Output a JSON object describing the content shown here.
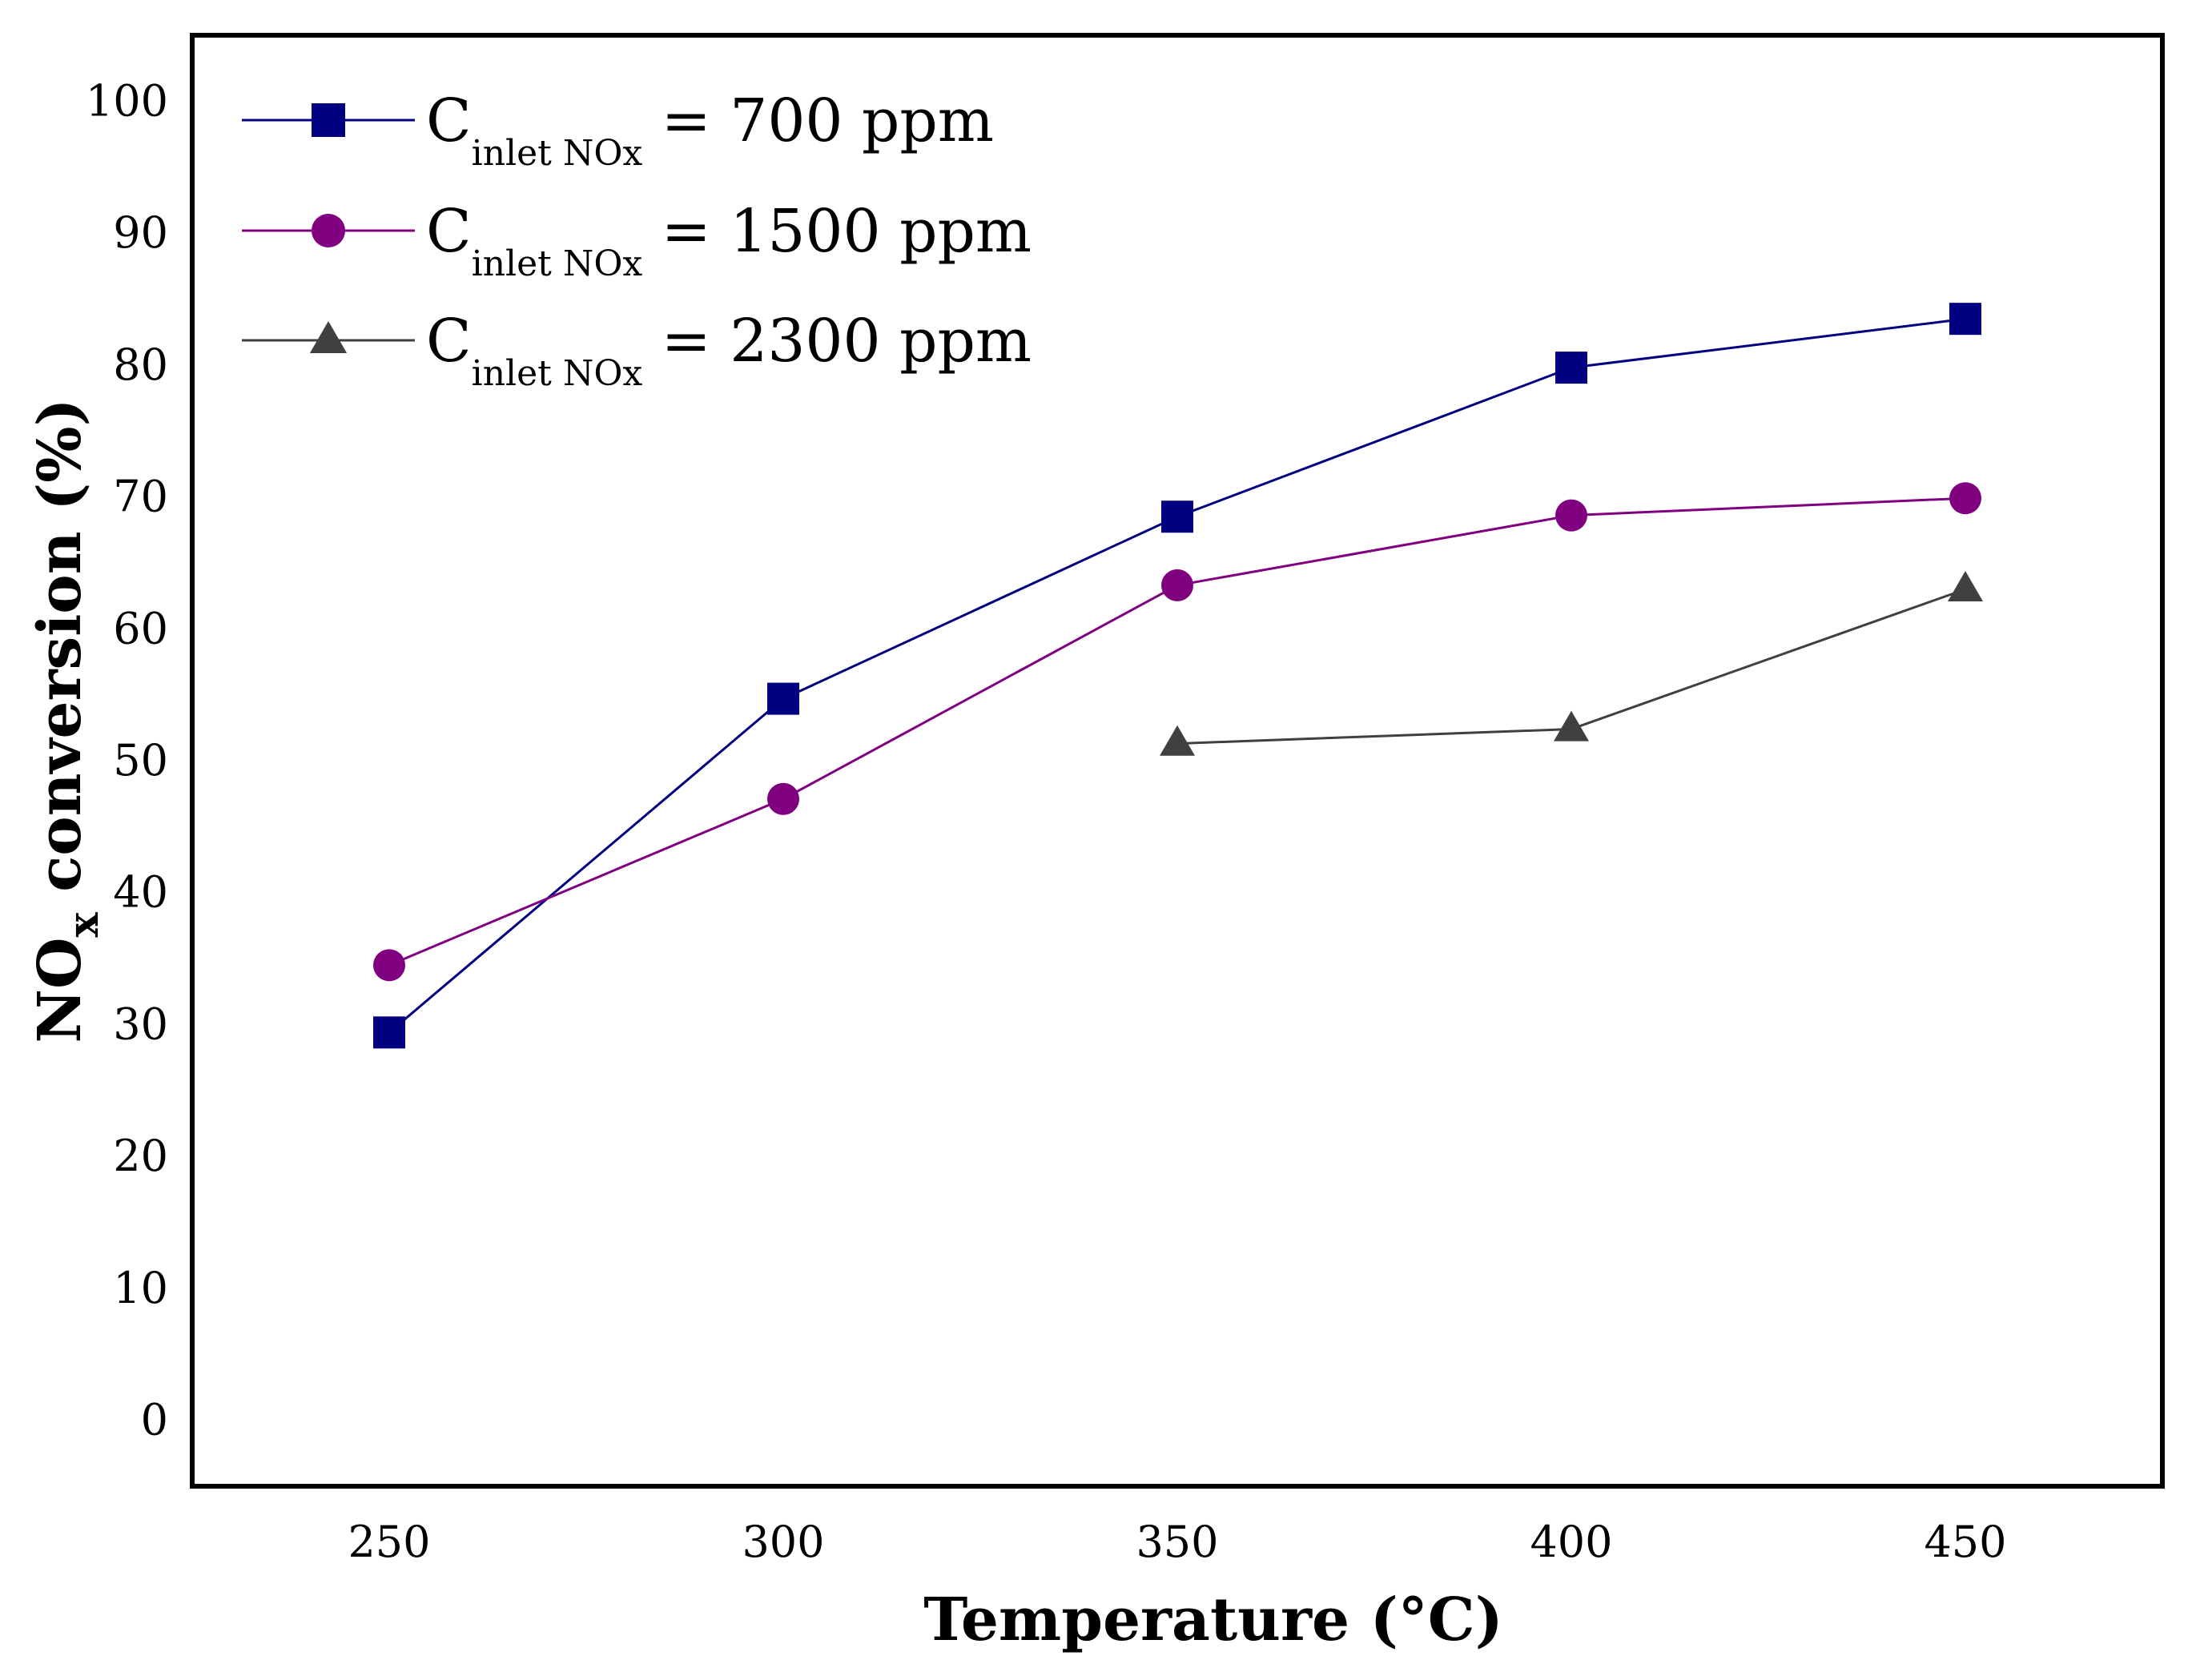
{
  "chart_data": {
    "type": "line",
    "title": "",
    "xlabel": "Temperature (°C)",
    "ylabel": {
      "main": "NO",
      "sub": "x",
      "rest": " conversion (%)"
    },
    "xlim": [
      225,
      475
    ],
    "ylim": [
      -5,
      105
    ],
    "xticks": [
      250,
      300,
      350,
      400,
      450
    ],
    "yticks": [
      0,
      10,
      20,
      30,
      40,
      50,
      60,
      70,
      80,
      90,
      100
    ],
    "grid": false,
    "legend_position": "top-left",
    "series": [
      {
        "name": "C inlet NOx = 700 ppm",
        "legend": {
          "main": "C",
          "sub": "inlet NOx",
          "rest": " = 700 ppm"
        },
        "marker": "square",
        "color": "#000080",
        "x": [
          250,
          300,
          350,
          400,
          450
        ],
        "y": [
          29.4,
          54.7,
          68.5,
          79.8,
          83.5
        ]
      },
      {
        "name": "C inlet NOx = 1500 ppm",
        "legend": {
          "main": "C",
          "sub": "inlet NOx",
          "rest": " = 1500 ppm"
        },
        "marker": "circle",
        "color": "#800080",
        "x": [
          250,
          300,
          350,
          400,
          450
        ],
        "y": [
          34.5,
          47.1,
          63.3,
          68.6,
          69.9
        ]
      },
      {
        "name": "C inlet NOx = 2300 ppm",
        "legend": {
          "main": "C",
          "sub": "inlet NOx",
          "rest": " = 2300 ppm"
        },
        "marker": "triangle",
        "color": "#404040",
        "x": [
          350,
          400,
          450
        ],
        "y": [
          51.3,
          52.4,
          63.0
        ]
      }
    ]
  }
}
